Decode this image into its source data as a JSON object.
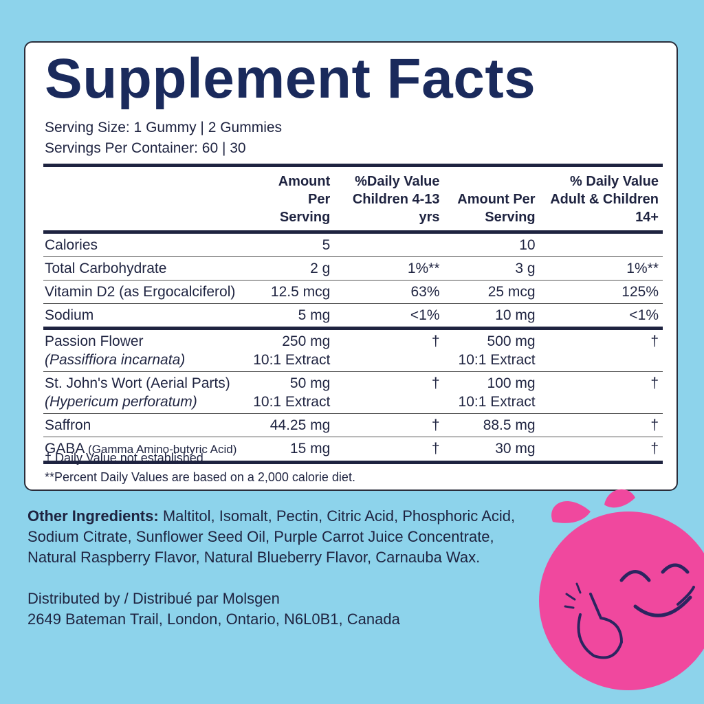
{
  "header": {
    "title": "Supplement Facts",
    "serving_size": "Serving Size: 1 Gummy | 2 Gummies",
    "servings_per_container": "Servings Per Container: 60 | 30"
  },
  "table": {
    "columns": [
      "Amount Per Serving",
      "%Daily Value Children 4-13 yrs",
      "Amount Per Serving",
      "% Daily Value Adult & Children 14+"
    ],
    "rows": [
      {
        "name": "Calories",
        "cells": [
          [
            "5"
          ],
          [],
          [
            "10"
          ],
          []
        ]
      },
      {
        "name": "Total Carbohydrate",
        "cells": [
          [
            "2 g"
          ],
          [
            "1%**"
          ],
          [
            "3 g"
          ],
          [
            "1%**"
          ]
        ]
      },
      {
        "name": "Vitamin D2 (as Ergocalciferol)",
        "cells": [
          [
            "12.5 mcg"
          ],
          [
            "63%"
          ],
          [
            "25 mcg"
          ],
          [
            "125%"
          ]
        ]
      },
      {
        "name": "Sodium",
        "cells": [
          [
            "5 mg"
          ],
          [
            "<1%"
          ],
          [
            "10 mg"
          ],
          [
            "<1%"
          ]
        ]
      },
      {
        "name": "Passion Flower",
        "latin": "(Passiffiora incarnata)",
        "cells": [
          [
            "250 mg",
            "10:1 Extract"
          ],
          [
            "†"
          ],
          [
            "500 mg",
            "10:1 Extract"
          ],
          [
            "†"
          ]
        ]
      },
      {
        "name": "St. John's Wort (Aerial Parts)",
        "latin": "(Hypericum perforatum)",
        "cells": [
          [
            "50 mg",
            "10:1 Extract"
          ],
          [
            "†"
          ],
          [
            "100 mg",
            "10:1 Extract"
          ],
          [
            "†"
          ]
        ]
      },
      {
        "name": "Saffron",
        "cells": [
          [
            "44.25 mg"
          ],
          [
            "†"
          ],
          [
            "88.5 mg"
          ],
          [
            "†"
          ]
        ]
      },
      {
        "name": "GABA",
        "note": "(Gamma Amino-butyric Acid)",
        "cells": [
          [
            "15 mg"
          ],
          [
            "†"
          ],
          [
            "30 mg"
          ],
          [
            "†"
          ]
        ]
      }
    ]
  },
  "footnotes": [
    "† Daily Value not established.",
    "**Percent Daily Values are based on a 2,000 calorie diet."
  ],
  "ingredients": {
    "label": "Other Ingredients:",
    "text": "Maltitol, Isomalt, Pectin, Citric Acid, Phosphoric Acid, Sodium Citrate, Sunflower Seed Oil, Purple Carrot Juice Concentrate, Natural Raspberry Flavor, Natural Blueberry Flavor, Carnauba Wax."
  },
  "distributor": [
    "Distributed by / Distribué par Molsgen",
    "2649 Bateman Trail, London, Ontario, N6L0B1, Canada"
  ]
}
